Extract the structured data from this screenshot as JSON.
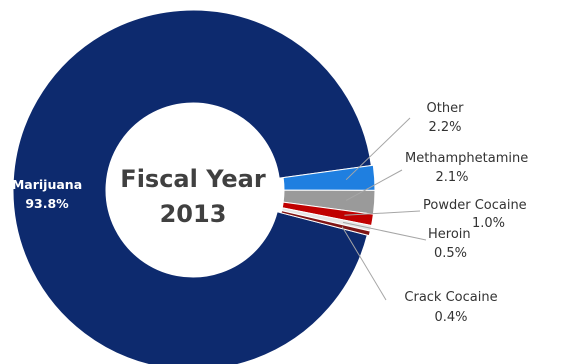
{
  "chart_data": {
    "type": "pie",
    "variant": "donut",
    "center_title": [
      "Fiscal Year",
      "2013"
    ],
    "slices": [
      {
        "label": "Marijuana",
        "value": 93.8,
        "value_label": "93.8%",
        "color": "#0d2a6e"
      },
      {
        "label": "Other",
        "value": 2.2,
        "value_label": "2.2%",
        "color": "#1f7fe0"
      },
      {
        "label": "Methamphetamine",
        "value": 2.1,
        "value_label": "2.1%",
        "color": "#9a9a9a"
      },
      {
        "label": "Powder Cocaine",
        "value": 1.0,
        "value_label": "1.0%",
        "color": "#c00000"
      },
      {
        "label": "Heroin",
        "value": 0.5,
        "value_label": "0.5%",
        "color": "#e6e6e6"
      },
      {
        "label": "Crack Cocaine",
        "value": 0.4,
        "value_label": "0.4%",
        "color": "#7f1515"
      }
    ],
    "legend": "none"
  }
}
